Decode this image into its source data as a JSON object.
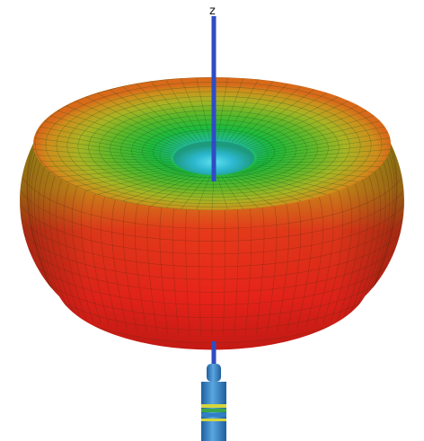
{
  "axis": {
    "z_label": "z"
  },
  "colors": {
    "torus_outer": "#e8231a",
    "torus_mid": "#c8b21e",
    "torus_inner": "#1fbf3a",
    "torus_core": "#34c7d8",
    "axis_line": "#2f4cc4",
    "antenna_body": "#2f7fc8",
    "antenna_band_yellow": "#d6d63a",
    "antenna_band_green": "#3aa64a"
  },
  "description_tags": {
    "shape": "toroidal radiation pattern",
    "feed": "dipole antenna"
  }
}
